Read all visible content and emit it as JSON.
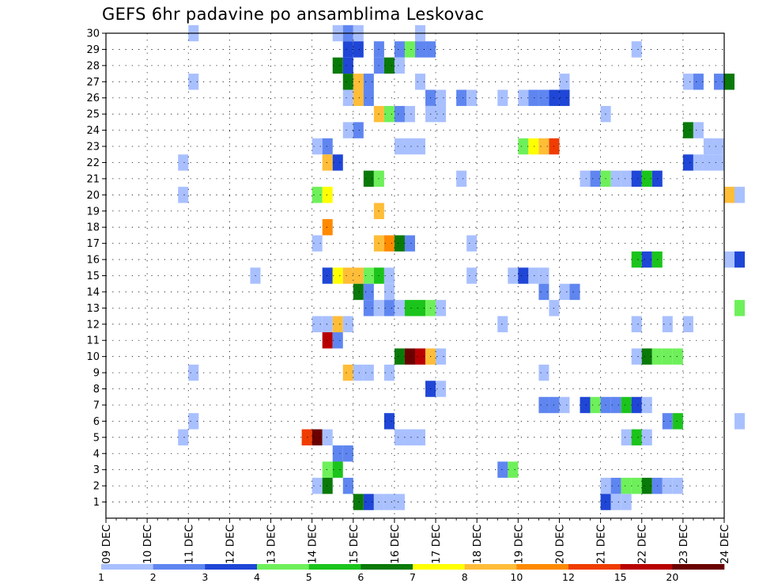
{
  "chart_data": {
    "type": "heatmap",
    "title": "GEFS 6hr padavine po ansamblima Leskovac",
    "x_tick_labels": [
      "09 DEC",
      "10 DEC",
      "11 DEC",
      "12 DEC",
      "13 DEC",
      "14 DEC",
      "15 DEC",
      "16 DEC",
      "17 DEC",
      "18 DEC",
      "19 DEC",
      "20 DEC",
      "21 DEC",
      "22 DEC",
      "23 DEC",
      "24 DEC"
    ],
    "y_tick_labels": [
      "1",
      "2",
      "3",
      "4",
      "5",
      "6",
      "7",
      "8",
      "9",
      "10",
      "11",
      "12",
      "13",
      "14",
      "15",
      "16",
      "17",
      "18",
      "19",
      "20",
      "21",
      "22",
      "23",
      "24",
      "25",
      "26",
      "27",
      "28",
      "29",
      "30"
    ],
    "x_range_days": [
      9,
      24
    ],
    "y_range_members": [
      0,
      30
    ],
    "step_hours": 6,
    "grid": "dotted",
    "colorbar": {
      "levels": [
        "1",
        "2",
        "3",
        "4",
        "5",
        "6",
        "7",
        "8",
        "10",
        "12",
        "15",
        "20"
      ],
      "colors": [
        "#a9c0ff",
        "#5f86f0",
        "#1f46d6",
        "#6ef05a",
        "#1bc41b",
        "#097a09",
        "#ffff00",
        "#ffbd38",
        "#ff8a00",
        "#f03c00",
        "#b80000",
        "#6a0000"
      ]
    },
    "cells_note": "each cell: [member, day_of_month, hour, level_index 0-11]",
    "cells": [
      [
        30,
        11,
        0,
        0
      ],
      [
        30,
        14,
        12,
        0
      ],
      [
        30,
        14,
        18,
        1
      ],
      [
        30,
        15,
        0,
        0
      ],
      [
        30,
        16,
        12,
        0
      ],
      [
        29,
        14,
        18,
        2
      ],
      [
        29,
        15,
        0,
        2
      ],
      [
        29,
        15,
        12,
        1
      ],
      [
        29,
        16,
        0,
        1
      ],
      [
        29,
        16,
        6,
        3
      ],
      [
        29,
        16,
        12,
        1
      ],
      [
        29,
        16,
        18,
        1
      ],
      [
        29,
        21,
        18,
        0
      ],
      [
        28,
        14,
        12,
        5
      ],
      [
        28,
        14,
        18,
        2
      ],
      [
        28,
        15,
        12,
        1
      ],
      [
        28,
        15,
        18,
        5
      ],
      [
        28,
        16,
        0,
        0
      ],
      [
        27,
        11,
        0,
        0
      ],
      [
        27,
        14,
        18,
        5
      ],
      [
        27,
        15,
        0,
        7
      ],
      [
        27,
        15,
        6,
        1
      ],
      [
        27,
        16,
        12,
        0
      ],
      [
        27,
        20,
        0,
        0
      ],
      [
        27,
        23,
        0,
        0
      ],
      [
        27,
        23,
        6,
        1
      ],
      [
        27,
        23,
        18,
        1
      ],
      [
        27,
        24,
        0,
        5
      ],
      [
        26,
        14,
        18,
        0
      ],
      [
        26,
        15,
        0,
        7
      ],
      [
        26,
        15,
        6,
        1
      ],
      [
        26,
        16,
        18,
        1
      ],
      [
        26,
        17,
        0,
        0
      ],
      [
        26,
        17,
        12,
        1
      ],
      [
        26,
        17,
        18,
        0
      ],
      [
        26,
        18,
        12,
        0
      ],
      [
        26,
        19,
        0,
        0
      ],
      [
        26,
        19,
        6,
        1
      ],
      [
        26,
        19,
        12,
        1
      ],
      [
        26,
        19,
        18,
        2
      ],
      [
        26,
        20,
        0,
        2
      ],
      [
        25,
        15,
        12,
        7
      ],
      [
        25,
        15,
        18,
        3
      ],
      [
        25,
        16,
        0,
        1
      ],
      [
        25,
        16,
        6,
        0
      ],
      [
        25,
        16,
        18,
        0
      ],
      [
        25,
        17,
        0,
        0
      ],
      [
        25,
        21,
        0,
        0
      ],
      [
        24,
        14,
        18,
        0
      ],
      [
        24,
        15,
        0,
        1
      ],
      [
        24,
        23,
        0,
        5
      ],
      [
        24,
        23,
        6,
        0
      ],
      [
        23,
        14,
        0,
        0
      ],
      [
        23,
        14,
        6,
        1
      ],
      [
        23,
        16,
        0,
        0
      ],
      [
        23,
        16,
        6,
        0
      ],
      [
        23,
        16,
        12,
        0
      ],
      [
        23,
        19,
        0,
        3
      ],
      [
        23,
        19,
        6,
        6
      ],
      [
        23,
        19,
        12,
        7
      ],
      [
        23,
        19,
        18,
        9
      ],
      [
        23,
        23,
        12,
        0
      ],
      [
        23,
        23,
        18,
        0
      ],
      [
        22,
        10,
        18,
        0
      ],
      [
        22,
        14,
        6,
        7
      ],
      [
        22,
        14,
        12,
        2
      ],
      [
        22,
        23,
        0,
        2
      ],
      [
        22,
        23,
        6,
        0
      ],
      [
        22,
        23,
        12,
        0
      ],
      [
        22,
        23,
        18,
        0
      ],
      [
        21,
        15,
        6,
        5
      ],
      [
        21,
        15,
        12,
        3
      ],
      [
        21,
        17,
        12,
        0
      ],
      [
        21,
        20,
        12,
        0
      ],
      [
        21,
        20,
        18,
        1
      ],
      [
        21,
        21,
        0,
        3
      ],
      [
        21,
        21,
        6,
        0
      ],
      [
        21,
        21,
        12,
        0
      ],
      [
        21,
        21,
        18,
        2
      ],
      [
        21,
        22,
        0,
        4
      ],
      [
        21,
        22,
        6,
        2
      ],
      [
        20,
        10,
        18,
        0
      ],
      [
        20,
        14,
        0,
        3
      ],
      [
        20,
        14,
        6,
        6
      ],
      [
        20,
        24,
        0,
        7
      ],
      [
        20,
        24,
        6,
        0
      ],
      [
        19,
        15,
        12,
        7
      ],
      [
        18,
        14,
        6,
        8
      ],
      [
        17,
        14,
        0,
        0
      ],
      [
        17,
        15,
        12,
        7
      ],
      [
        17,
        15,
        18,
        8
      ],
      [
        17,
        16,
        0,
        5
      ],
      [
        17,
        16,
        6,
        1
      ],
      [
        17,
        17,
        18,
        0
      ],
      [
        16,
        21,
        18,
        4
      ],
      [
        16,
        22,
        0,
        2
      ],
      [
        16,
        22,
        6,
        4
      ],
      [
        16,
        24,
        0,
        0
      ],
      [
        16,
        24,
        6,
        2
      ],
      [
        15,
        12,
        12,
        0
      ],
      [
        15,
        14,
        6,
        2
      ],
      [
        15,
        14,
        12,
        6
      ],
      [
        15,
        14,
        18,
        7
      ],
      [
        15,
        15,
        0,
        7
      ],
      [
        15,
        15,
        6,
        3
      ],
      [
        15,
        15,
        12,
        4
      ],
      [
        15,
        15,
        18,
        0
      ],
      [
        15,
        17,
        18,
        0
      ],
      [
        15,
        18,
        18,
        0
      ],
      [
        15,
        19,
        0,
        2
      ],
      [
        15,
        19,
        6,
        0
      ],
      [
        15,
        19,
        12,
        0
      ],
      [
        14,
        15,
        0,
        5
      ],
      [
        14,
        15,
        6,
        1
      ],
      [
        14,
        15,
        18,
        0
      ],
      [
        14,
        19,
        12,
        1
      ],
      [
        14,
        20,
        0,
        0
      ],
      [
        14,
        20,
        6,
        1
      ],
      [
        13,
        15,
        6,
        1
      ],
      [
        13,
        15,
        12,
        0
      ],
      [
        13,
        15,
        18,
        1
      ],
      [
        13,
        16,
        0,
        0
      ],
      [
        13,
        16,
        6,
        4
      ],
      [
        13,
        16,
        12,
        4
      ],
      [
        13,
        16,
        18,
        3
      ],
      [
        13,
        17,
        0,
        0
      ],
      [
        13,
        19,
        18,
        0
      ],
      [
        13,
        24,
        6,
        3
      ],
      [
        12,
        14,
        0,
        0
      ],
      [
        12,
        14,
        6,
        0
      ],
      [
        12,
        14,
        12,
        7
      ],
      [
        12,
        14,
        18,
        0
      ],
      [
        12,
        18,
        12,
        0
      ],
      [
        12,
        21,
        18,
        0
      ],
      [
        12,
        22,
        12,
        0
      ],
      [
        12,
        23,
        0,
        0
      ],
      [
        11,
        14,
        6,
        10
      ],
      [
        11,
        14,
        12,
        1
      ],
      [
        10,
        16,
        0,
        5
      ],
      [
        10,
        16,
        6,
        11
      ],
      [
        10,
        16,
        12,
        10
      ],
      [
        10,
        16,
        18,
        7
      ],
      [
        10,
        17,
        0,
        0
      ],
      [
        10,
        21,
        18,
        0
      ],
      [
        10,
        22,
        0,
        5
      ],
      [
        10,
        22,
        6,
        3
      ],
      [
        10,
        22,
        12,
        3
      ],
      [
        10,
        22,
        18,
        3
      ],
      [
        9,
        11,
        0,
        0
      ],
      [
        9,
        14,
        18,
        7
      ],
      [
        9,
        15,
        0,
        0
      ],
      [
        9,
        15,
        6,
        0
      ],
      [
        9,
        15,
        18,
        0
      ],
      [
        9,
        19,
        12,
        0
      ],
      [
        8,
        16,
        18,
        2
      ],
      [
        8,
        17,
        0,
        0
      ],
      [
        7,
        19,
        12,
        1
      ],
      [
        7,
        19,
        18,
        1
      ],
      [
        7,
        20,
        0,
        0
      ],
      [
        7,
        20,
        12,
        2
      ],
      [
        7,
        20,
        18,
        3
      ],
      [
        7,
        21,
        0,
        1
      ],
      [
        7,
        21,
        6,
        1
      ],
      [
        7,
        21,
        12,
        4
      ],
      [
        7,
        21,
        18,
        2
      ],
      [
        7,
        22,
        0,
        0
      ],
      [
        6,
        11,
        0,
        0
      ],
      [
        6,
        15,
        18,
        2
      ],
      [
        6,
        22,
        12,
        1
      ],
      [
        6,
        22,
        18,
        4
      ],
      [
        6,
        24,
        6,
        0
      ],
      [
        5,
        10,
        18,
        0
      ],
      [
        5,
        13,
        18,
        9
      ],
      [
        5,
        14,
        0,
        11
      ],
      [
        5,
        14,
        6,
        0
      ],
      [
        5,
        16,
        0,
        0
      ],
      [
        5,
        16,
        6,
        0
      ],
      [
        5,
        16,
        12,
        0
      ],
      [
        5,
        21,
        12,
        0
      ],
      [
        5,
        21,
        18,
        4
      ],
      [
        5,
        22,
        0,
        0
      ],
      [
        4,
        14,
        12,
        1
      ],
      [
        4,
        14,
        18,
        1
      ],
      [
        3,
        14,
        6,
        3
      ],
      [
        3,
        14,
        12,
        4
      ],
      [
        3,
        18,
        12,
        1
      ],
      [
        3,
        18,
        18,
        3
      ],
      [
        2,
        14,
        18,
        1
      ],
      [
        2,
        14,
        0,
        0
      ],
      [
        2,
        14,
        6,
        5
      ],
      [
        2,
        21,
        0,
        0
      ],
      [
        2,
        21,
        6,
        1
      ],
      [
        2,
        21,
        12,
        3
      ],
      [
        2,
        21,
        18,
        3
      ],
      [
        2,
        22,
        0,
        5
      ],
      [
        2,
        22,
        6,
        1
      ],
      [
        2,
        22,
        12,
        0
      ],
      [
        2,
        22,
        18,
        0
      ],
      [
        1,
        15,
        0,
        5
      ],
      [
        1,
        15,
        6,
        2
      ],
      [
        1,
        15,
        12,
        0
      ],
      [
        1,
        15,
        18,
        0
      ],
      [
        1,
        16,
        0,
        0
      ],
      [
        1,
        21,
        0,
        2
      ],
      [
        1,
        21,
        6,
        0
      ],
      [
        1,
        21,
        12,
        0
      ]
    ]
  }
}
